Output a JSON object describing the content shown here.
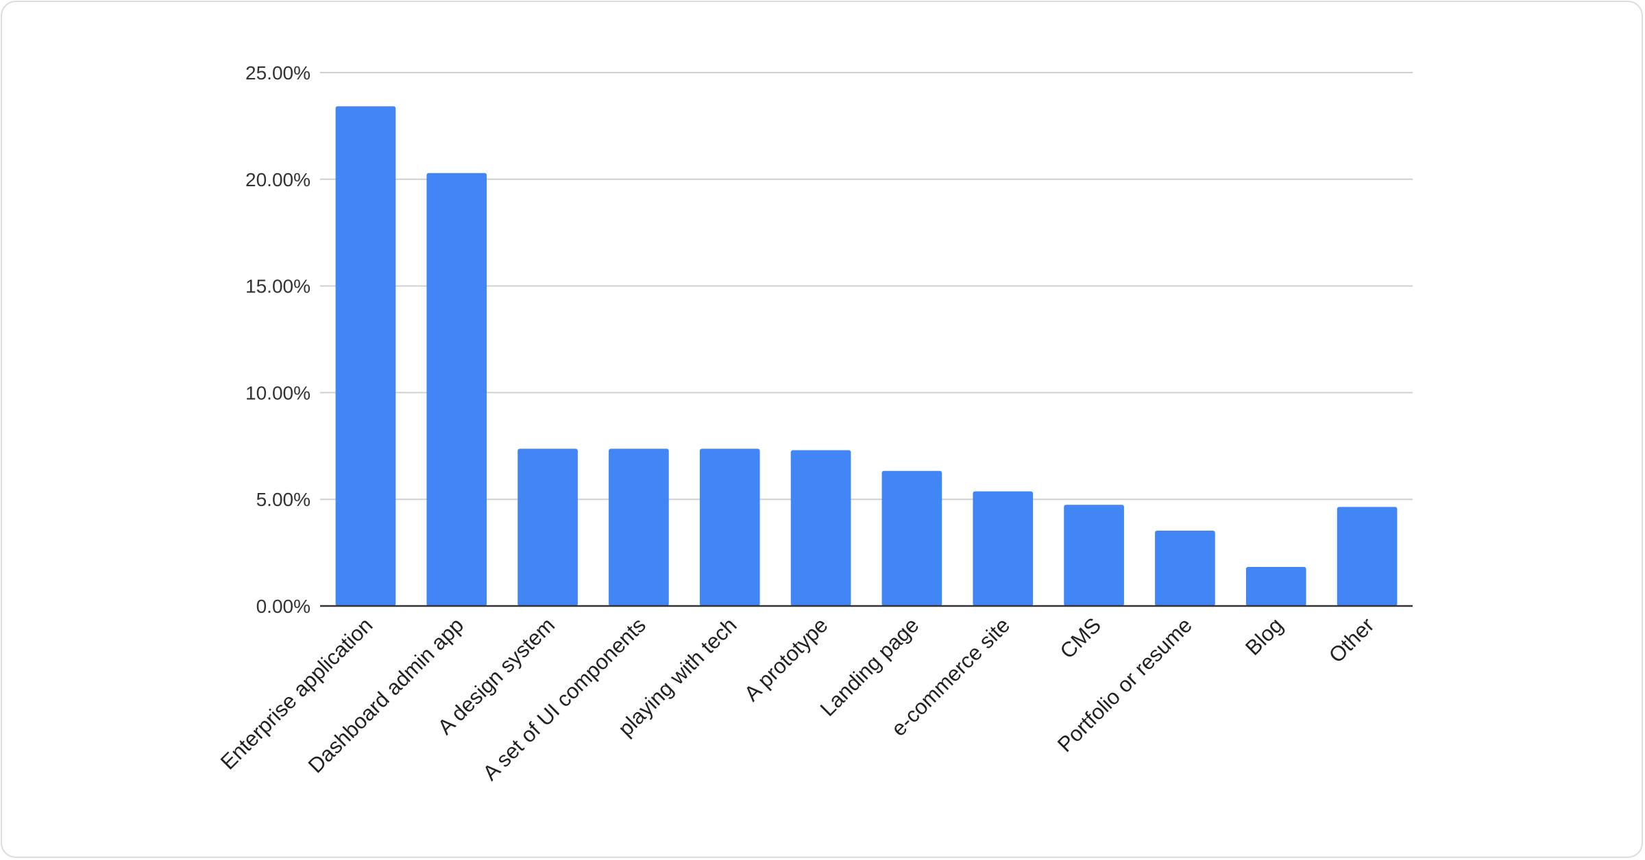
{
  "chart_data": {
    "type": "bar",
    "title": "",
    "xlabel": "",
    "ylabel": "",
    "ylim": [
      0,
      25
    ],
    "y_ticks": [
      "0.00%",
      "5.00%",
      "10.00%",
      "15.00%",
      "20.00%",
      "25.00%"
    ],
    "y_tick_values": [
      0,
      5,
      10,
      15,
      20,
      25
    ],
    "grid": true,
    "legend": "none",
    "bar_color": "#4285f4",
    "categories": [
      "Enterprise application",
      "Dashboard admin app",
      "A design system",
      "A set of UI components",
      "playing with tech",
      "A prototype",
      "Landing page",
      "e-commerce site",
      "CMS",
      "Portfolio or resume",
      "Blog",
      "Other"
    ],
    "values": [
      23.42,
      20.29,
      7.37,
      7.37,
      7.37,
      7.3,
      6.33,
      5.37,
      4.74,
      3.53,
      1.83,
      4.64
    ],
    "unit": "%"
  }
}
